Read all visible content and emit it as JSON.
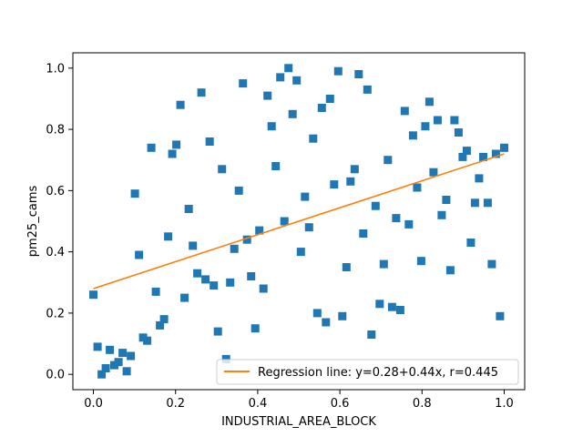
{
  "chart_data": {
    "type": "scatter",
    "xlabel": "INDUSTRIAL_AREA_BLOCK",
    "ylabel": "pm25_cams",
    "xlim": [
      -0.05,
      1.05
    ],
    "ylim": [
      -0.05,
      1.05
    ],
    "xticks": [
      "0.0",
      "0.2",
      "0.4",
      "0.6",
      "0.8",
      "1.0"
    ],
    "yticks": [
      "0.0",
      "0.2",
      "0.4",
      "0.6",
      "0.8",
      "1.0"
    ],
    "grid": false,
    "legend_position": "lower-right",
    "series": [
      {
        "kind": "points",
        "color": "#1f77b4",
        "marker": "square",
        "x": [
          0.0,
          0.01,
          0.02,
          0.03,
          0.04,
          0.051,
          0.061,
          0.071,
          0.081,
          0.091,
          0.101,
          0.111,
          0.121,
          0.131,
          0.141,
          0.152,
          0.162,
          0.172,
          0.182,
          0.192,
          0.202,
          0.212,
          0.222,
          0.232,
          0.242,
          0.253,
          0.263,
          0.273,
          0.283,
          0.293,
          0.303,
          0.313,
          0.323,
          0.333,
          0.343,
          0.354,
          0.364,
          0.374,
          0.384,
          0.394,
          0.404,
          0.414,
          0.424,
          0.434,
          0.444,
          0.455,
          0.465,
          0.475,
          0.485,
          0.495,
          0.505,
          0.515,
          0.525,
          0.535,
          0.545,
          0.556,
          0.566,
          0.576,
          0.586,
          0.596,
          0.606,
          0.616,
          0.626,
          0.636,
          0.646,
          0.657,
          0.667,
          0.677,
          0.687,
          0.697,
          0.707,
          0.717,
          0.727,
          0.737,
          0.747,
          0.758,
          0.768,
          0.778,
          0.788,
          0.798,
          0.808,
          0.818,
          0.828,
          0.838,
          0.848,
          0.859,
          0.869,
          0.879,
          0.889,
          0.899,
          0.909,
          0.919,
          0.929,
          0.939,
          0.949,
          0.96,
          0.97,
          0.98,
          0.99,
          1.0
        ],
        "y": [
          0.26,
          0.09,
          0.0,
          0.02,
          0.08,
          0.03,
          0.04,
          0.07,
          0.01,
          0.06,
          0.59,
          0.39,
          0.12,
          0.11,
          0.74,
          0.27,
          0.16,
          0.18,
          0.45,
          0.72,
          0.75,
          0.88,
          0.25,
          0.54,
          0.42,
          0.33,
          0.92,
          0.31,
          0.76,
          0.29,
          0.14,
          0.67,
          0.05,
          0.3,
          0.41,
          0.6,
          0.95,
          0.44,
          0.32,
          0.15,
          0.47,
          0.28,
          0.91,
          0.81,
          0.68,
          0.97,
          0.5,
          1.0,
          0.85,
          0.96,
          0.4,
          0.58,
          0.48,
          0.77,
          0.2,
          0.87,
          0.17,
          0.9,
          0.62,
          0.99,
          0.19,
          0.35,
          0.63,
          0.67,
          0.98,
          0.46,
          0.93,
          0.13,
          0.55,
          0.23,
          0.36,
          0.7,
          0.22,
          0.51,
          0.21,
          0.86,
          0.49,
          0.78,
          0.61,
          0.37,
          0.81,
          0.89,
          0.66,
          0.83,
          0.52,
          0.57,
          0.34,
          0.83,
          0.79,
          0.71,
          0.73,
          0.43,
          0.56,
          0.64,
          0.71,
          0.56,
          0.36,
          0.72,
          0.19,
          0.74
        ]
      },
      {
        "kind": "line",
        "name": "Regression line: y=0.28+0.44x, r=0.445",
        "color": "#ff7f0e",
        "intercept": 0.28,
        "slope": 0.44,
        "x_range": [
          0,
          1
        ]
      }
    ]
  }
}
